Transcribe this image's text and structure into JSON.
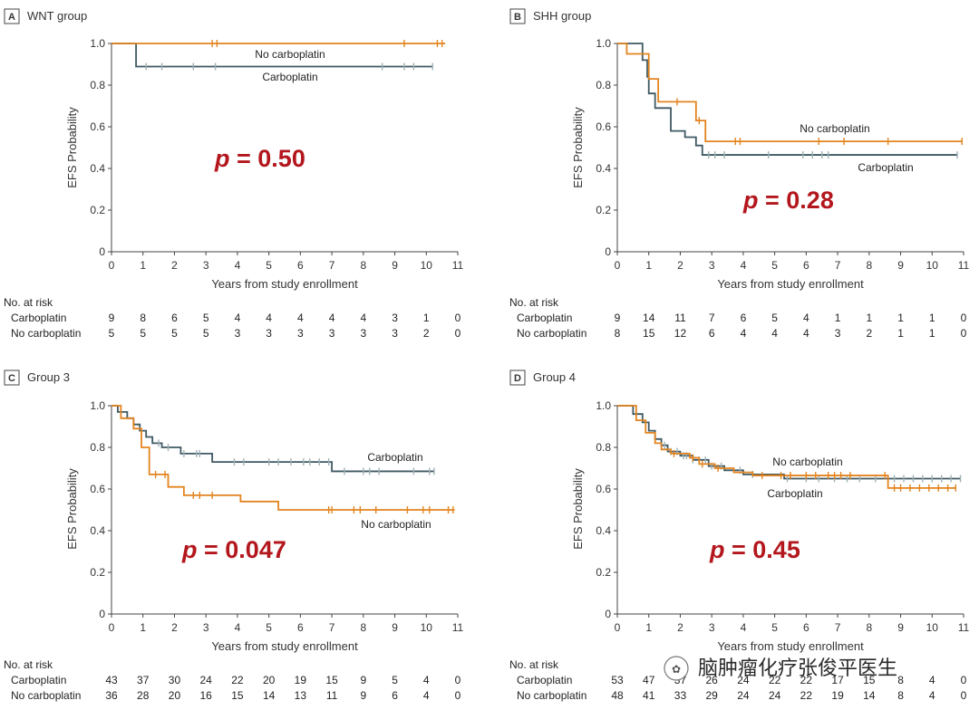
{
  "colors": {
    "carboplatin": "#3f5963",
    "no_carboplatin": "#e3841f",
    "censor_carbo": "#9fb2b8",
    "pvalue": "#b3171d",
    "axis": "#444444"
  },
  "common": {
    "xlabel": "Years from study enrollment",
    "ylabel": "EFS Probability",
    "risk_header": "No. at risk",
    "row_carbo": "Carboplatin",
    "row_nocarbo": "No carboplatin",
    "xticks": [
      0,
      1,
      2,
      3,
      4,
      5,
      6,
      7,
      8,
      9,
      10,
      11
    ],
    "yticks": [
      "0",
      "0.2",
      "0.4",
      "0.6",
      "0.8",
      "1.0"
    ]
  },
  "watermark": "脑肿瘤化疗张俊平医生",
  "chart_data": [
    {
      "type": "line",
      "letter": "A",
      "title": "WNT group",
      "p_value": "0.50",
      "xlim": [
        0,
        11
      ],
      "ylim": [
        0,
        1
      ],
      "series": [
        {
          "name": "Carboplatin",
          "label": "Carboplatin",
          "steps": [
            [
              0,
              1.0
            ],
            [
              0.78,
              0.889
            ],
            [
              10.2,
              0.889
            ]
          ],
          "censor": [
            1.1,
            1.6,
            2.6,
            3.3,
            8.6,
            9.3,
            9.6,
            10.2
          ]
        },
        {
          "name": "No carboplatin",
          "label": "No carboplatin",
          "steps": [
            [
              0,
              1.0
            ],
            [
              10.6,
              1.0
            ]
          ],
          "censor": [
            3.2,
            3.35,
            9.3,
            10.35,
            10.5
          ]
        }
      ],
      "risk": {
        "Carboplatin": [
          "9",
          "8",
          "6",
          "5",
          "4",
          "4",
          "4",
          "4",
          "4",
          "3",
          "1",
          "0"
        ],
        "No carboplatin": [
          "5",
          "5",
          "5",
          "5",
          "3",
          "3",
          "3",
          "3",
          "3",
          "3",
          "2",
          "0"
        ]
      }
    },
    {
      "type": "line",
      "letter": "B",
      "title": "SHH group",
      "p_value": "0.28",
      "xlim": [
        0,
        11
      ],
      "ylim": [
        0,
        1
      ],
      "series": [
        {
          "name": "Carboplatin",
          "label": "Carboplatin",
          "steps": [
            [
              0,
              1.0
            ],
            [
              0.8,
              0.92
            ],
            [
              0.95,
              0.84
            ],
            [
              1.0,
              0.76
            ],
            [
              1.2,
              0.69
            ],
            [
              1.7,
              0.58
            ],
            [
              2.15,
              0.55
            ],
            [
              2.5,
              0.51
            ],
            [
              2.7,
              0.465
            ],
            [
              10.8,
              0.465
            ]
          ],
          "censor": [
            2.9,
            3.1,
            3.4,
            4.8,
            5.9,
            6.2,
            6.5,
            6.7,
            10.8
          ]
        },
        {
          "name": "No carboplatin",
          "label": "No carboplatin",
          "steps": [
            [
              0,
              1.0
            ],
            [
              0.3,
              0.95
            ],
            [
              1.0,
              0.83
            ],
            [
              1.3,
              0.72
            ],
            [
              2.5,
              0.63
            ],
            [
              2.8,
              0.53
            ],
            [
              10.95,
              0.53
            ]
          ],
          "censor": [
            1.9,
            2.6,
            3.75,
            3.9,
            6.4,
            7.2,
            8.6,
            10.95
          ]
        }
      ],
      "risk": {
        "Carboplatin": [
          "9",
          "14",
          "11",
          "7",
          "6",
          "5",
          "4",
          "1",
          "1",
          "1",
          "1",
          "0"
        ],
        "No carboplatin": [
          "8",
          "15",
          "12",
          "6",
          "4",
          "4",
          "4",
          "3",
          "2",
          "1",
          "1",
          "0"
        ]
      }
    },
    {
      "type": "line",
      "letter": "C",
      "title": "Group 3",
      "p_value": "0.047",
      "xlim": [
        0,
        11
      ],
      "ylim": [
        0,
        1
      ],
      "series": [
        {
          "name": "Carboplatin",
          "label": "Carboplatin",
          "steps": [
            [
              0,
              1.0
            ],
            [
              0.2,
              0.97
            ],
            [
              0.5,
              0.94
            ],
            [
              0.7,
              0.91
            ],
            [
              0.9,
              0.88
            ],
            [
              1.1,
              0.85
            ],
            [
              1.3,
              0.82
            ],
            [
              1.6,
              0.8
            ],
            [
              2.2,
              0.77
            ],
            [
              3.2,
              0.73
            ],
            [
              7.0,
              0.685
            ],
            [
              10.25,
              0.685
            ]
          ],
          "censor": [
            1.5,
            1.8,
            2.3,
            2.7,
            2.8,
            3.9,
            4.2,
            5.0,
            5.3,
            5.7,
            6.1,
            6.3,
            6.6,
            6.9,
            7.4,
            8.0,
            8.2,
            8.5,
            9.6,
            10.1,
            10.25
          ]
        },
        {
          "name": "No carboplatin",
          "label": "No carboplatin",
          "steps": [
            [
              0,
              1.0
            ],
            [
              0.3,
              0.94
            ],
            [
              0.7,
              0.89
            ],
            [
              0.95,
              0.8
            ],
            [
              1.2,
              0.67
            ],
            [
              1.8,
              0.61
            ],
            [
              2.3,
              0.57
            ],
            [
              4.1,
              0.54
            ],
            [
              5.3,
              0.5
            ],
            [
              10.9,
              0.5
            ]
          ],
          "censor": [
            1.4,
            1.7,
            2.6,
            2.8,
            3.2,
            6.9,
            7.0,
            7.7,
            7.9,
            8.4,
            9.4,
            9.9,
            10.1,
            10.7,
            10.85
          ]
        }
      ],
      "risk": {
        "Carboplatin": [
          "43",
          "37",
          "30",
          "24",
          "22",
          "20",
          "19",
          "15",
          "9",
          "5",
          "4",
          "0"
        ],
        "No carboplatin": [
          "36",
          "28",
          "20",
          "16",
          "15",
          "14",
          "13",
          "11",
          "9",
          "6",
          "4",
          "0"
        ]
      }
    },
    {
      "type": "line",
      "letter": "D",
      "title": "Group 4",
      "p_value": "0.45",
      "xlim": [
        0,
        11
      ],
      "ylim": [
        0,
        1
      ],
      "series": [
        {
          "name": "Carboplatin",
          "label": "Carboplatin",
          "steps": [
            [
              0,
              1.0
            ],
            [
              0.5,
              0.96
            ],
            [
              0.8,
              0.92
            ],
            [
              1.0,
              0.88
            ],
            [
              1.2,
              0.84
            ],
            [
              1.4,
              0.81
            ],
            [
              1.6,
              0.78
            ],
            [
              2.0,
              0.76
            ],
            [
              2.4,
              0.74
            ],
            [
              2.9,
              0.71
            ],
            [
              3.4,
              0.69
            ],
            [
              4.0,
              0.67
            ],
            [
              5.3,
              0.65
            ],
            [
              10.9,
              0.65
            ]
          ],
          "censor": [
            1.5,
            1.7,
            1.9,
            2.1,
            2.2,
            2.4,
            2.6,
            2.8,
            3.0,
            3.3,
            3.9,
            4.3,
            5.4,
            6.0,
            6.4,
            6.9,
            7.3,
            7.7,
            8.2,
            8.8,
            9.1,
            9.4,
            9.7,
            10.0,
            10.3,
            10.6,
            10.9
          ]
        },
        {
          "name": "No carboplatin",
          "label": "No carboplatin",
          "steps": [
            [
              0,
              1.0
            ],
            [
              0.6,
              0.93
            ],
            [
              0.9,
              0.87
            ],
            [
              1.2,
              0.82
            ],
            [
              1.4,
              0.79
            ],
            [
              1.7,
              0.77
            ],
            [
              2.3,
              0.75
            ],
            [
              2.6,
              0.72
            ],
            [
              3.1,
              0.7
            ],
            [
              3.7,
              0.68
            ],
            [
              4.3,
              0.665
            ],
            [
              8.6,
              0.605
            ],
            [
              10.75,
              0.605
            ]
          ],
          "censor": [
            1.8,
            2.4,
            2.7,
            3.2,
            4.6,
            5.2,
            5.5,
            6.0,
            6.3,
            6.7,
            6.9,
            7.1,
            7.4,
            8.5,
            8.8,
            9.0,
            9.3,
            9.6,
            9.9,
            10.2,
            10.5,
            10.75
          ]
        }
      ],
      "risk": {
        "Carboplatin": [
          "53",
          "47",
          "37",
          "26",
          "24",
          "22",
          "22",
          "17",
          "15",
          "8",
          "4",
          "0"
        ],
        "No carboplatin": [
          "48",
          "41",
          "33",
          "29",
          "24",
          "24",
          "22",
          "19",
          "14",
          "8",
          "4",
          "0"
        ]
      }
    }
  ]
}
